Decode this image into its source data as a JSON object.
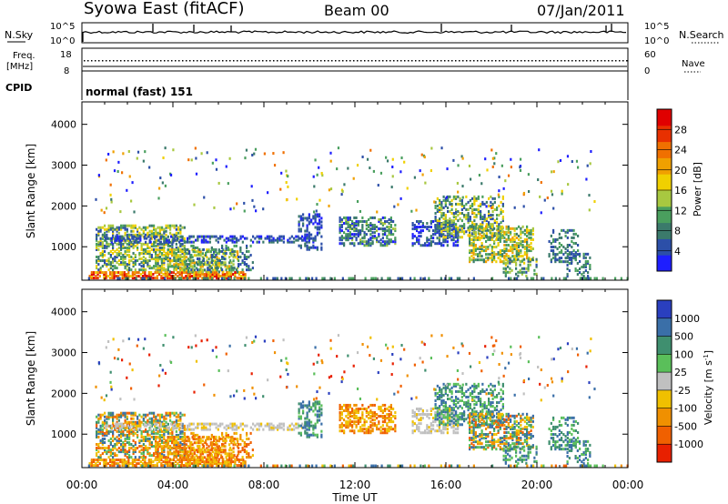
{
  "header": {
    "station": "Syowa East (fitACF)",
    "beam": "Beam 00",
    "date": "07/Jan/2011"
  },
  "noise_panel": {
    "left_label": "N.Sky",
    "right_label": "N.Search",
    "left_ticks": [
      "10^5",
      "10^0"
    ],
    "right_ticks": [
      "10^5",
      "10^0"
    ]
  },
  "freq_panel": {
    "left_label_1": "Freq.",
    "left_label_2": "[MHz]",
    "left_ticks": [
      "18",
      "8"
    ],
    "right_label": "Nave",
    "right_ticks": [
      "60",
      "0"
    ]
  },
  "cpid": {
    "label": "CPID",
    "text": "normal (fast) 151"
  },
  "colors": {
    "power_scale": [
      "#1e1eff",
      "#2c4fa8",
      "#3b7a6b",
      "#4a9f5e",
      "#a8c840",
      "#f0d000",
      "#f0a000",
      "#f07000",
      "#e83000",
      "#e00000"
    ],
    "velocity_scale": [
      "#2a3fbf",
      "#3a6fa8",
      "#3f8f6f",
      "#5abf5a",
      "#c0c0c0",
      "#f0c000",
      "#f09000",
      "#f06000",
      "#e82000"
    ]
  },
  "chart_data": [
    {
      "type": "heatmap",
      "name": "power",
      "ylabel": "Slant Range [km]",
      "yticks": [
        "1000",
        "2000",
        "3000",
        "4000"
      ],
      "ylim": [
        180,
        4550
      ],
      "colorbar_label": "Power [dB]",
      "colorbar_ticks": [
        "4",
        "8",
        "12",
        "16",
        "20",
        "24",
        "28"
      ],
      "colorbar_range": [
        0,
        32
      ],
      "xticks": [
        "00:00",
        "04:00",
        "08:00",
        "12:00",
        "16:00",
        "20:00",
        "00:00"
      ],
      "xlim_hours": [
        0,
        24
      ]
    },
    {
      "type": "heatmap",
      "name": "velocity",
      "ylabel": "Slant Range [km]",
      "yticks": [
        "1000",
        "2000",
        "3000",
        "4000"
      ],
      "ylim": [
        180,
        4550
      ],
      "colorbar_label_main": "Velocity [m s",
      "colorbar_label_sup": "-1",
      "colorbar_label_end": "]",
      "colorbar_ticks": [
        "1000",
        "500",
        "100",
        "25",
        "-25",
        "-100",
        "-500",
        "-1000"
      ],
      "xticks": [
        "00:00",
        "04:00",
        "08:00",
        "12:00",
        "16:00",
        "20:00",
        "00:00"
      ],
      "xlabel": "Time UT",
      "xlim_hours": [
        0,
        24
      ]
    }
  ]
}
